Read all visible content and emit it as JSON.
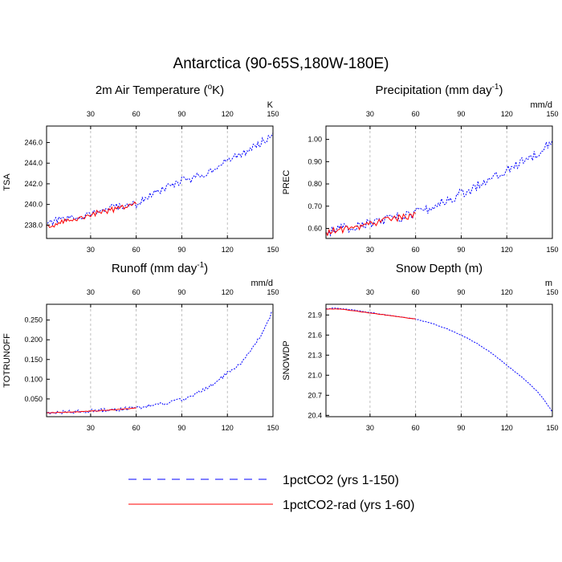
{
  "figure": {
    "title": "Antarctica (90-65S,180W-180E)"
  },
  "legend": [
    {
      "label": "1pctCO2 (yrs 1-150)",
      "color": "#0000ff",
      "style": "dashed"
    },
    {
      "label": "1pctCO2-rad (yrs 1-60)",
      "color": "#ff0000",
      "style": "solid"
    }
  ],
  "colors": {
    "series_1pctCO2": "#0000ff",
    "series_rad": "#ff0000",
    "top_ticks": "#0000ff",
    "bottom_ticks": "#ff0000",
    "gridline": "#b0b0b0"
  },
  "chart_data": [
    {
      "type": "line",
      "title_main": "2m Air Temperature (",
      "title_sup": "o",
      "title_tail": "K)",
      "ylabel": "TSA",
      "units": "K",
      "xlim": [
        1,
        150
      ],
      "ylim": [
        236.7,
        247.6
      ],
      "xticks": [
        30,
        60,
        90,
        120,
        150
      ],
      "xtick_labels": [
        "30",
        "60",
        "90",
        "120",
        "150"
      ],
      "yticks": [
        238,
        240,
        242,
        244,
        246
      ],
      "ytick_labels": [
        "238.0",
        "240.0",
        "242.0",
        "244.0",
        "246.0"
      ],
      "grid_x": [
        30,
        60,
        90,
        120
      ],
      "series": [
        {
          "name": "1pctCO2 (yrs 1-150)",
          "x": [
            1,
            5,
            10,
            15,
            20,
            25,
            30,
            35,
            40,
            45,
            50,
            55,
            60,
            65,
            70,
            75,
            80,
            85,
            90,
            95,
            100,
            105,
            110,
            115,
            120,
            125,
            130,
            135,
            140,
            145,
            150
          ],
          "values": [
            237.9,
            238.3,
            238.5,
            238.6,
            238.7,
            238.9,
            239.1,
            239.3,
            239.5,
            239.7,
            239.8,
            239.9,
            240.0,
            240.5,
            240.9,
            241.3,
            241.6,
            241.9,
            242.4,
            242.3,
            242.7,
            243.0,
            243.4,
            243.8,
            244.2,
            244.6,
            244.9,
            245.4,
            245.8,
            246.3,
            246.9
          ]
        },
        {
          "name": "1pctCO2-rad (yrs 1-60)",
          "x": [
            1,
            5,
            10,
            15,
            20,
            25,
            30,
            35,
            40,
            45,
            50,
            55,
            60
          ],
          "values": [
            237.8,
            237.9,
            238.2,
            238.4,
            238.6,
            238.8,
            239.0,
            239.2,
            239.3,
            239.5,
            239.7,
            239.9,
            240.0
          ]
        }
      ]
    },
    {
      "type": "line",
      "title_main": "Precipitation (mm day",
      "title_sup": "-1",
      "title_tail": ")",
      "ylabel": "PREC",
      "units": "mm/d",
      "xlim": [
        1,
        150
      ],
      "ylim": [
        0.555,
        1.06
      ],
      "xticks": [
        30,
        60,
        90,
        120,
        150
      ],
      "xtick_labels": [
        "30",
        "60",
        "90",
        "120",
        "150"
      ],
      "yticks": [
        0.6,
        0.7,
        0.8,
        0.9,
        1.0
      ],
      "ytick_labels": [
        "0.60",
        "0.70",
        "0.80",
        "0.90",
        "1.00"
      ],
      "grid_x": [
        30,
        60,
        90,
        120
      ],
      "series": [
        {
          "name": "1pctCO2 (yrs 1-150)",
          "x": [
            1,
            5,
            10,
            15,
            20,
            25,
            30,
            35,
            40,
            45,
            50,
            55,
            60,
            65,
            70,
            75,
            80,
            85,
            90,
            95,
            100,
            105,
            110,
            115,
            120,
            125,
            130,
            135,
            140,
            145,
            150
          ],
          "values": [
            0.58,
            0.59,
            0.6,
            0.6,
            0.61,
            0.62,
            0.62,
            0.63,
            0.64,
            0.65,
            0.65,
            0.66,
            0.67,
            0.68,
            0.69,
            0.71,
            0.72,
            0.74,
            0.76,
            0.77,
            0.79,
            0.81,
            0.83,
            0.85,
            0.86,
            0.88,
            0.9,
            0.92,
            0.94,
            0.97,
            1.0
          ]
        },
        {
          "name": "1pctCO2-rad (yrs 1-60)",
          "x": [
            1,
            5,
            10,
            15,
            20,
            25,
            30,
            35,
            40,
            45,
            50,
            55,
            60
          ],
          "values": [
            0.58,
            0.59,
            0.59,
            0.6,
            0.6,
            0.61,
            0.62,
            0.63,
            0.64,
            0.64,
            0.65,
            0.65,
            0.66
          ]
        }
      ]
    },
    {
      "type": "line",
      "title_main": "Runoff (mm day",
      "title_sup": "-1",
      "title_tail": ")",
      "ylabel": "TOTRUNOFF",
      "units": "mm/d",
      "xlim": [
        1,
        150
      ],
      "ylim": [
        0.005,
        0.29
      ],
      "xticks": [
        30,
        60,
        90,
        120,
        150
      ],
      "xtick_labels": [
        "30",
        "60",
        "90",
        "120",
        "150"
      ],
      "yticks": [
        0.05,
        0.1,
        0.15,
        0.2,
        0.25
      ],
      "ytick_labels": [
        "0.050",
        "0.100",
        "0.150",
        "0.200",
        "0.250"
      ],
      "grid_x": [
        30,
        60,
        90,
        120
      ],
      "series": [
        {
          "name": "1pctCO2 (yrs 1-150)",
          "x": [
            1,
            10,
            20,
            30,
            40,
            50,
            60,
            70,
            80,
            90,
            95,
            100,
            105,
            110,
            115,
            120,
            125,
            130,
            135,
            140,
            145,
            150
          ],
          "values": [
            0.015,
            0.016,
            0.017,
            0.019,
            0.021,
            0.024,
            0.027,
            0.033,
            0.04,
            0.048,
            0.056,
            0.064,
            0.074,
            0.086,
            0.1,
            0.115,
            0.125,
            0.145,
            0.17,
            0.2,
            0.235,
            0.275
          ]
        },
        {
          "name": "1pctCO2-rad (yrs 1-60)",
          "x": [
            1,
            10,
            20,
            30,
            40,
            50,
            60
          ],
          "values": [
            0.015,
            0.016,
            0.017,
            0.019,
            0.021,
            0.024,
            0.027
          ]
        }
      ]
    },
    {
      "type": "line",
      "title_main": "Snow Depth (m)",
      "title_sup": "",
      "title_tail": "",
      "ylabel": "SNOWDP",
      "units": "m",
      "xlim": [
        1,
        150
      ],
      "ylim": [
        20.38,
        22.06
      ],
      "xticks": [
        30,
        60,
        90,
        120,
        150
      ],
      "xtick_labels": [
        "30",
        "60",
        "90",
        "120",
        "150"
      ],
      "yticks": [
        20.4,
        20.7,
        21.0,
        21.3,
        21.6,
        21.9
      ],
      "ytick_labels": [
        "20.4",
        "20.7",
        "21.0",
        "21.3",
        "21.6",
        "21.9"
      ],
      "grid_x": [
        30,
        60,
        90,
        120
      ],
      "series": [
        {
          "name": "1pctCO2 (yrs 1-150)",
          "x": [
            1,
            5,
            10,
            20,
            30,
            40,
            50,
            60,
            70,
            80,
            90,
            100,
            110,
            120,
            130,
            140,
            145,
            150
          ],
          "values": [
            21.99,
            22.0,
            22.0,
            21.97,
            21.94,
            21.9,
            21.87,
            21.84,
            21.78,
            21.7,
            21.6,
            21.48,
            21.33,
            21.15,
            20.97,
            20.76,
            20.62,
            20.45
          ]
        },
        {
          "name": "1pctCO2-rad (yrs 1-60)",
          "x": [
            1,
            10,
            20,
            30,
            40,
            50,
            60
          ],
          "values": [
            21.99,
            21.99,
            21.96,
            21.93,
            21.9,
            21.87,
            21.84
          ]
        }
      ]
    }
  ]
}
